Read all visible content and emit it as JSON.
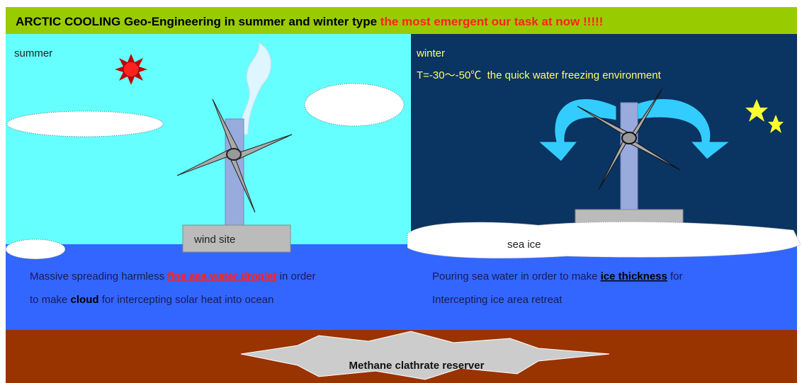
{
  "header": {
    "title": "ARCTIC COOLING Geo-Engineering in summer and winter type ",
    "emphasis": "the most emergent our task at now !!!!!"
  },
  "summer": {
    "label": "summer",
    "site": "wind site",
    "lines": [
      [
        "Massive spreading harmless ",
        "fine sea water droplet",
        " in order"
      ],
      [
        "to make ",
        "cloud",
        " for intercepting solar heat into ocean"
      ]
    ]
  },
  "winter": {
    "label": "winter",
    "condition": "T=-30～-50℃  the quick water freezing environment",
    "site": "sea ice",
    "lines": [
      [
        "Pouring sea water in order to make ",
        "ice thickness",
        " for"
      ],
      [
        "Intercepting ice area retreat"
      ]
    ]
  },
  "ground": {
    "label": "Methane clathrate reserver"
  }
}
